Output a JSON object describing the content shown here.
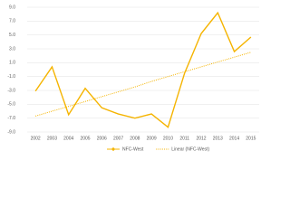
{
  "chart_data": {
    "type": "line",
    "categories": [
      "2002",
      "2003",
      "2004",
      "2005",
      "2006",
      "2007",
      "2008",
      "2009",
      "2010",
      "2011",
      "2012",
      "2013",
      "2014",
      "2015"
    ],
    "series": [
      {
        "name": "NFC-West",
        "color": "#f5b400",
        "style": "solid",
        "values": [
          -3.1,
          0.4,
          -6.5,
          -2.7,
          -5.5,
          -6.4,
          -7.0,
          -6.4,
          -8.3,
          -0.5,
          5.2,
          8.2,
          2.6,
          4.7
        ]
      },
      {
        "name": "Linear (NFC-West)",
        "color": "#f5b400",
        "style": "dotted",
        "values": [
          -6.7,
          -6.0,
          -5.3,
          -4.6,
          -3.9,
          -3.2,
          -2.5,
          -1.7,
          -1.0,
          -0.3,
          0.4,
          1.1,
          1.8,
          2.5
        ]
      }
    ],
    "ylim": [
      -9,
      9
    ],
    "yticks": [
      {
        "value": 9,
        "label": "9.0"
      },
      {
        "value": 7,
        "label": "7.0"
      },
      {
        "value": 5,
        "label": "5.0"
      },
      {
        "value": 3,
        "label": "3.0"
      },
      {
        "value": 1,
        "label": "1.0"
      },
      {
        "value": -1,
        "label": "-1.0"
      },
      {
        "value": -3,
        "label": "-3.0"
      },
      {
        "value": -5,
        "label": "-5.0"
      },
      {
        "value": -7,
        "label": "-7.0"
      },
      {
        "value": -9,
        "label": "-9.0"
      }
    ],
    "grid": true,
    "legend": "bottom"
  }
}
